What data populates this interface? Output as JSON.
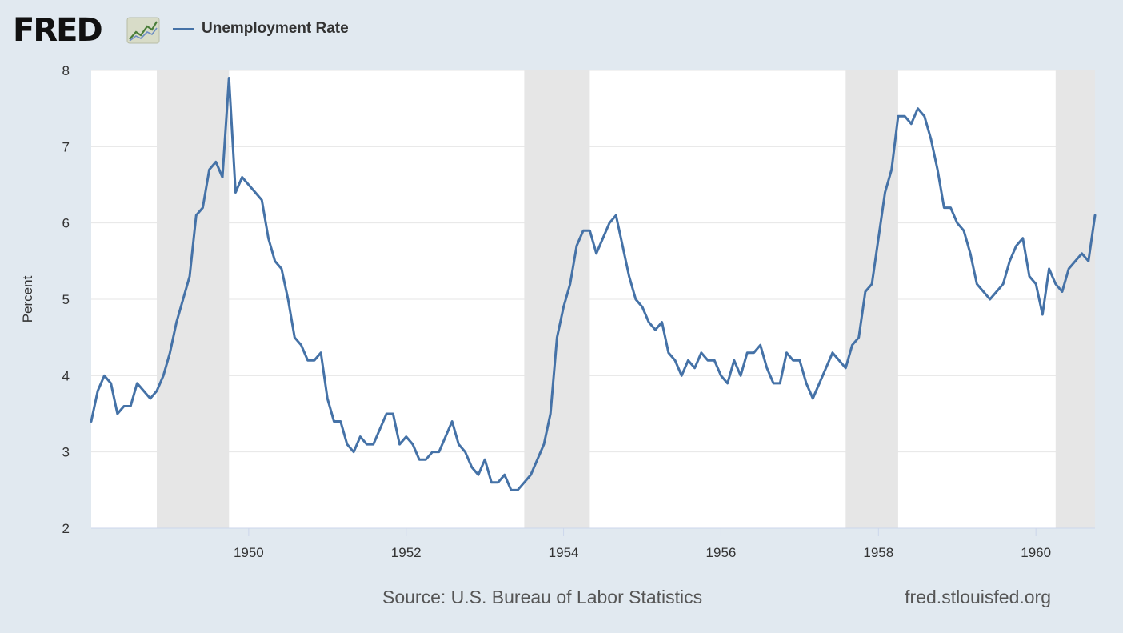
{
  "header": {
    "logo_text": "FRED",
    "logo_icon": "fred-graph-icon",
    "legend_label": "Unemployment Rate",
    "legend_color": "#4572a7"
  },
  "colors": {
    "background": "#e1e9f0",
    "plot_background": "#ffffff",
    "recession_band": "#e6e6e6",
    "gridline": "#e6e6e6",
    "line": "#4572a7"
  },
  "chart_data": {
    "type": "line",
    "title": "",
    "xlabel": "",
    "ylabel": "Percent",
    "series": [
      {
        "name": "Unemployment Rate",
        "frequency": "monthly",
        "start": "1948-01",
        "values": [
          3.4,
          3.8,
          4.0,
          3.9,
          3.5,
          3.6,
          3.6,
          3.9,
          3.8,
          3.7,
          3.8,
          4.0,
          4.3,
          4.7,
          5.0,
          5.3,
          6.1,
          6.2,
          6.7,
          6.8,
          6.6,
          7.9,
          6.4,
          6.6,
          6.5,
          6.4,
          6.3,
          5.8,
          5.5,
          5.4,
          5.0,
          4.5,
          4.4,
          4.2,
          4.2,
          4.3,
          3.7,
          3.4,
          3.4,
          3.1,
          3.0,
          3.2,
          3.1,
          3.1,
          3.3,
          3.5,
          3.5,
          3.1,
          3.2,
          3.1,
          2.9,
          2.9,
          3.0,
          3.0,
          3.2,
          3.4,
          3.1,
          3.0,
          2.8,
          2.7,
          2.9,
          2.6,
          2.6,
          2.7,
          2.5,
          2.5,
          2.6,
          2.7,
          2.9,
          3.1,
          3.5,
          4.5,
          4.9,
          5.2,
          5.7,
          5.9,
          5.9,
          5.6,
          5.8,
          6.0,
          6.1,
          5.7,
          5.3,
          5.0,
          4.9,
          4.7,
          4.6,
          4.7,
          4.3,
          4.2,
          4.0,
          4.2,
          4.1,
          4.3,
          4.2,
          4.2,
          4.0,
          3.9,
          4.2,
          4.0,
          4.3,
          4.3,
          4.4,
          4.1,
          3.9,
          3.9,
          4.3,
          4.2,
          4.2,
          3.9,
          3.7,
          3.9,
          4.1,
          4.3,
          4.2,
          4.1,
          4.4,
          4.5,
          5.1,
          5.2,
          5.8,
          6.4,
          6.7,
          7.4,
          7.4,
          7.3,
          7.5,
          7.4,
          7.1,
          6.7,
          6.2,
          6.2,
          6.0,
          5.9,
          5.6,
          5.2,
          5.1,
          5.0,
          5.1,
          5.2,
          5.5,
          5.7,
          5.8,
          5.3,
          5.2,
          4.8,
          5.4,
          5.2,
          5.1,
          5.4,
          5.5,
          5.6,
          5.5,
          6.1
        ]
      }
    ],
    "x_range": [
      "1948-01",
      "1960-10"
    ],
    "x_ticks": [
      "1950",
      "1952",
      "1954",
      "1956",
      "1958",
      "1960"
    ],
    "y_ticks": [
      "2",
      "3",
      "4",
      "5",
      "6",
      "7",
      "8"
    ],
    "ylim": [
      2,
      8
    ],
    "grid": true,
    "recessions": [
      [
        "1948-11",
        "1949-10"
      ],
      [
        "1953-07",
        "1954-05"
      ],
      [
        "1957-08",
        "1958-04"
      ],
      [
        "1960-04",
        "1960-10"
      ]
    ],
    "legend_position": "top-left"
  },
  "footer": {
    "source": "Source: U.S. Bureau of Labor Statistics",
    "url": "fred.stlouisfed.org"
  }
}
